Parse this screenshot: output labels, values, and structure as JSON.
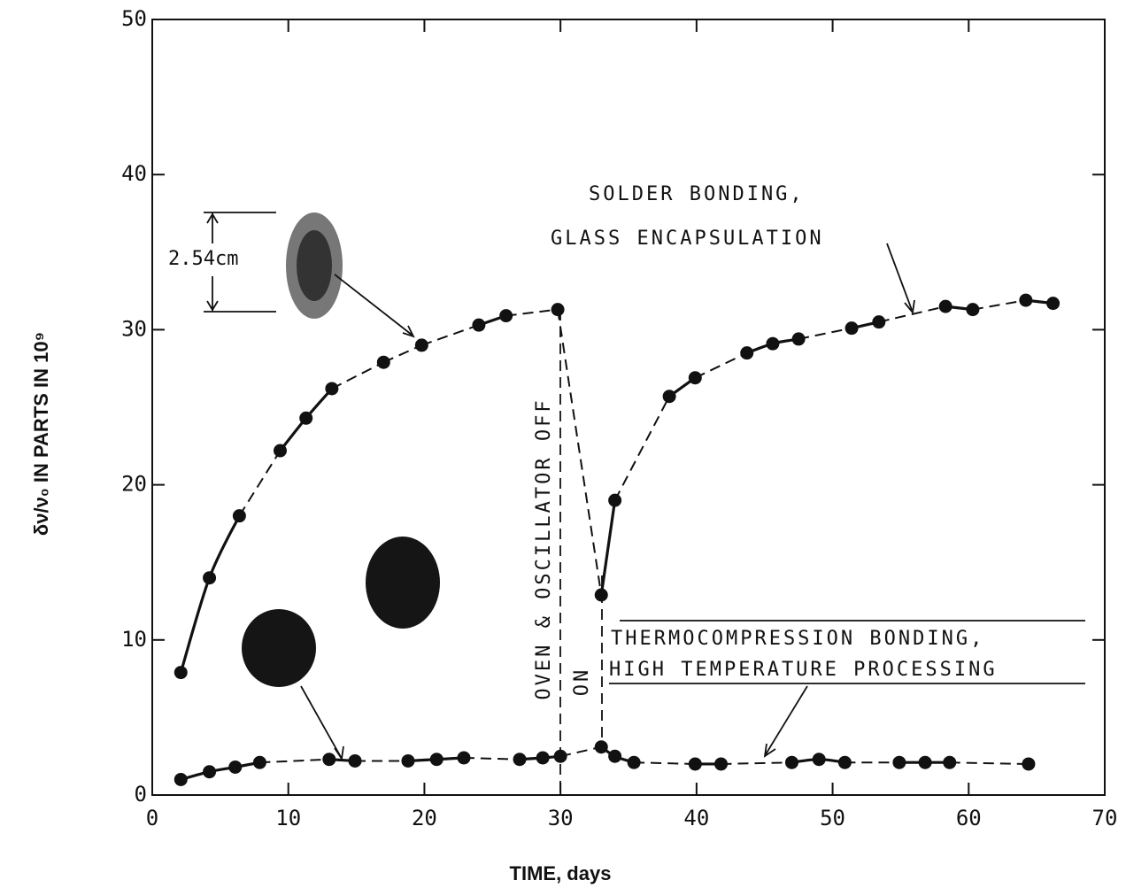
{
  "chart_data": {
    "type": "scatter",
    "x_label": "TIME, days",
    "y_label": "δν/ν₀ IN PARTS IN 10⁹",
    "xlim": [
      0,
      70
    ],
    "xticks": [
      0,
      10,
      20,
      30,
      40,
      50,
      60,
      70
    ],
    "ylim": [
      0,
      50
    ],
    "yticks": [
      0,
      10,
      20,
      30,
      40,
      50
    ],
    "series": [
      {
        "name": "SOLDER BONDING, GLASS ENCAPSULATION",
        "color": "#111111",
        "x": [
          2.1,
          4.2,
          6.4,
          9.4,
          11.3,
          13.2,
          17.0,
          19.8,
          24.0,
          26.0,
          29.8,
          33.0,
          34.0,
          38.0,
          39.9,
          43.7,
          45.6,
          47.5,
          51.4,
          53.4,
          58.3,
          60.3,
          64.2,
          66.2
        ],
        "values": [
          7.9,
          14.0,
          18.0,
          22.2,
          24.3,
          26.2,
          27.9,
          29.0,
          30.3,
          30.9,
          31.3,
          12.9,
          19.0,
          25.7,
          26.9,
          28.5,
          29.1,
          29.4,
          30.1,
          30.5,
          31.5,
          31.3,
          31.9,
          31.7
        ]
      },
      {
        "name": "THERMOCOMPRESSION BONDING, HIGH TEMPERATURE PROCESSING",
        "color": "#111111",
        "x": [
          2.1,
          4.2,
          6.1,
          7.9,
          13.0,
          14.9,
          18.8,
          20.9,
          22.9,
          27.0,
          28.7,
          30.0,
          33.0,
          34.0,
          35.4,
          39.9,
          41.8,
          47.0,
          49.0,
          50.9,
          54.9,
          56.8,
          58.6,
          64.4
        ],
        "values": [
          1.0,
          1.5,
          1.8,
          2.1,
          2.3,
          2.2,
          2.2,
          2.3,
          2.4,
          2.3,
          2.4,
          2.5,
          3.1,
          2.5,
          2.1,
          2.0,
          2.0,
          2.1,
          2.3,
          2.1,
          2.1,
          2.1,
          2.1,
          2.0
        ]
      }
    ],
    "annotations": {
      "size": "2.54cm",
      "solder_1": "SOLDER BONDING,",
      "solder_2": "GLASS ENCAPSULATION",
      "off": "OVEN & OSCILLATOR OFF",
      "on": "ON",
      "thermo_1": "THERMOCOMPRESSION BONDING,",
      "thermo_2": "HIGH TEMPERATURE PROCESSING"
    }
  }
}
